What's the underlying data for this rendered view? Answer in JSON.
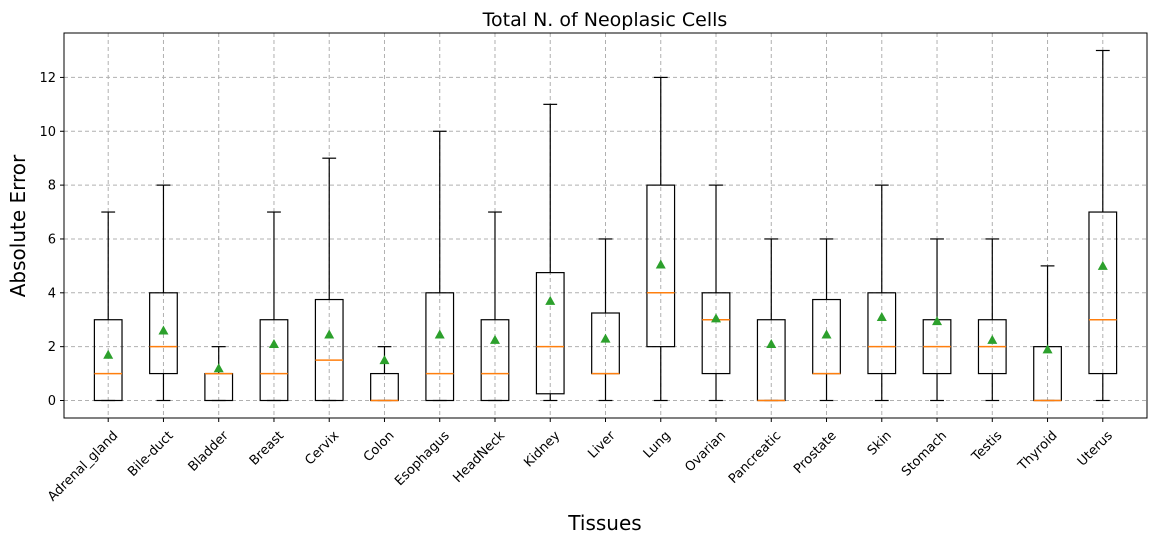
{
  "chart_data": {
    "type": "box",
    "title": "Total N. of Neoplasic Cells",
    "xlabel": "Tissues",
    "ylabel": "Absolute Error",
    "ylim": [
      -0.65,
      13.65
    ],
    "yticks": [
      0,
      2,
      4,
      6,
      8,
      10,
      12
    ],
    "grid": true,
    "colors": {
      "box": "#000000",
      "median": "#ff7f0e",
      "mean": "#2ca02c",
      "grid": "#b0b0b0"
    },
    "categories": [
      "Adrenal_gland",
      "Bile-duct",
      "Bladder",
      "Breast",
      "Cervix",
      "Colon",
      "Esophagus",
      "HeadNeck",
      "Kidney",
      "Liver",
      "Lung",
      "Ovarian",
      "Pancreatic",
      "Prostate",
      "Skin",
      "Stomach",
      "Testis",
      "Thyroid",
      "Uterus"
    ],
    "boxes": [
      {
        "whislo": 0,
        "q1": 0,
        "med": 1,
        "q3": 3,
        "whishi": 7,
        "mean": 1.7
      },
      {
        "whislo": 0,
        "q1": 1,
        "med": 2,
        "q3": 4,
        "whishi": 8,
        "mean": 2.6
      },
      {
        "whislo": 0,
        "q1": 0,
        "med": 1,
        "q3": 1,
        "whishi": 2,
        "mean": 1.2
      },
      {
        "whislo": 0,
        "q1": 0,
        "med": 1,
        "q3": 3,
        "whishi": 7,
        "mean": 2.1
      },
      {
        "whislo": 0,
        "q1": 0,
        "med": 1.5,
        "q3": 3.75,
        "whishi": 9,
        "mean": 2.45
      },
      {
        "whislo": 0,
        "q1": 0,
        "med": 0,
        "q3": 1,
        "whishi": 2,
        "mean": 1.5
      },
      {
        "whislo": 0,
        "q1": 0,
        "med": 1,
        "q3": 4,
        "whishi": 10,
        "mean": 2.45
      },
      {
        "whislo": 0,
        "q1": 0,
        "med": 1,
        "q3": 3,
        "whishi": 7,
        "mean": 2.25
      },
      {
        "whislo": 0,
        "q1": 0.25,
        "med": 2,
        "q3": 4.75,
        "whishi": 11,
        "mean": 3.7
      },
      {
        "whislo": 0,
        "q1": 1,
        "med": 1,
        "q3": 3.25,
        "whishi": 6,
        "mean": 2.3
      },
      {
        "whislo": 0,
        "q1": 2,
        "med": 4,
        "q3": 8,
        "whishi": 12,
        "mean": 5.05
      },
      {
        "whislo": 0,
        "q1": 1,
        "med": 3,
        "q3": 4,
        "whishi": 8,
        "mean": 3.05
      },
      {
        "whislo": 0,
        "q1": 0,
        "med": 0,
        "q3": 3,
        "whishi": 6,
        "mean": 2.1
      },
      {
        "whislo": 0,
        "q1": 1,
        "med": 1,
        "q3": 3.75,
        "whishi": 6,
        "mean": 2.45
      },
      {
        "whislo": 0,
        "q1": 1,
        "med": 2,
        "q3": 4,
        "whishi": 8,
        "mean": 3.1
      },
      {
        "whislo": 0,
        "q1": 1,
        "med": 2,
        "q3": 3,
        "whishi": 6,
        "mean": 2.95
      },
      {
        "whislo": 0,
        "q1": 1,
        "med": 2,
        "q3": 3,
        "whishi": 6,
        "mean": 2.25
      },
      {
        "whislo": 0,
        "q1": 0,
        "med": 0,
        "q3": 2,
        "whishi": 5,
        "mean": 1.9
      },
      {
        "whislo": 0,
        "q1": 1,
        "med": 3,
        "q3": 7,
        "whishi": 13,
        "mean": 5.0
      }
    ]
  }
}
